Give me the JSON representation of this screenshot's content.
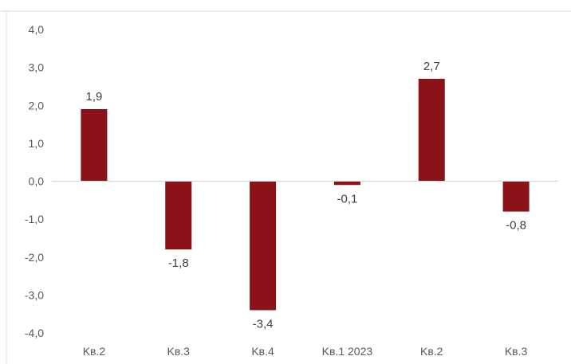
{
  "chart_data": {
    "type": "bar",
    "categories": [
      "Kв.2",
      "Kв.3",
      "Kв.4",
      "Kв.1 2023",
      "Kв.2",
      "Kв.3"
    ],
    "values": [
      1.9,
      -1.8,
      -3.4,
      -0.1,
      2.7,
      -0.8
    ],
    "data_labels": [
      "1,9",
      "-1,8",
      "-3,4",
      "-0,1",
      "2,7",
      "-0,8"
    ],
    "y_ticks": [
      4.0,
      3.0,
      2.0,
      1.0,
      0.0,
      -1.0,
      -2.0,
      -3.0,
      -4.0
    ],
    "y_tick_labels": [
      "4,0",
      "3,0",
      "2,0",
      "1,0",
      "0,0",
      "-1,0",
      "-2,0",
      "-3,0",
      "-4,0"
    ],
    "ylim": [
      -4,
      4
    ],
    "grid": false,
    "legend": "none",
    "bar_color": "#8b1216",
    "axis_color": "#d9d9d9"
  }
}
